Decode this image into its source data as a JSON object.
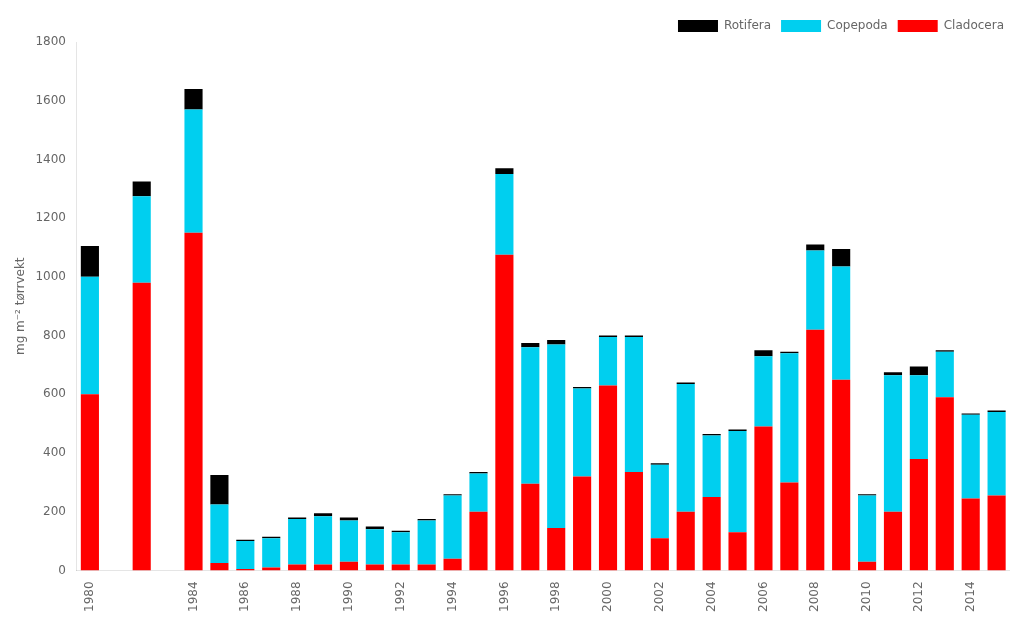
{
  "chart_data": {
    "type": "bar",
    "stacked": true,
    "categories": [
      "1980",
      null,
      null,
      null,
      "1984",
      null,
      "1986",
      null,
      "1988",
      null,
      "1990",
      null,
      "1992",
      null,
      "1994",
      null,
      "1996",
      null,
      "1998",
      null,
      "2000",
      null,
      "2002",
      null,
      "2004",
      null,
      "2006",
      null,
      "2008",
      null,
      "2010",
      null,
      "2012",
      null,
      "2014",
      null
    ],
    "series": [
      {
        "name": "Cladocera",
        "color": "#FF0000",
        "values": [
          600,
          0,
          980,
          0,
          1150,
          25,
          5,
          10,
          20,
          20,
          30,
          20,
          20,
          20,
          40,
          200,
          1075,
          295,
          145,
          320,
          630,
          335,
          110,
          200,
          250,
          130,
          490,
          300,
          820,
          650,
          30,
          200,
          380,
          590,
          245,
          255
        ]
      },
      {
        "name": "Copepoda",
        "color": "#00CFEF",
        "values": [
          400,
          0,
          295,
          0,
          420,
          200,
          95,
          100,
          155,
          165,
          140,
          120,
          110,
          150,
          215,
          130,
          275,
          465,
          625,
          300,
          165,
          460,
          250,
          435,
          210,
          345,
          240,
          440,
          270,
          385,
          225,
          465,
          285,
          155,
          285,
          285
        ]
      },
      {
        "name": "Rotifera",
        "color": "#000000",
        "values": [
          105,
          0,
          50,
          0,
          70,
          100,
          5,
          5,
          5,
          10,
          10,
          10,
          5,
          5,
          5,
          5,
          20,
          15,
          15,
          5,
          5,
          5,
          5,
          5,
          5,
          5,
          20,
          5,
          20,
          60,
          5,
          10,
          30,
          5,
          5,
          5
        ]
      }
    ],
    "ylabel": "mg m⁻² tørrvekt",
    "ylim": [
      0,
      1800
    ],
    "yticks": [
      0,
      200,
      400,
      600,
      800,
      1000,
      1200,
      1400,
      1600,
      1800
    ],
    "legend": "upper right",
    "grid": false
  }
}
